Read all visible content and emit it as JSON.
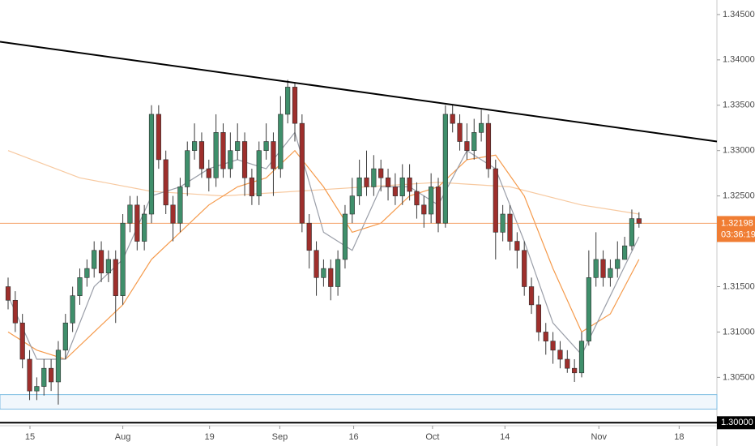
{
  "chart_data": {
    "type": "candlestick",
    "xlim": [
      -1.13,
      98.87
    ],
    "ylim": [
      1.29967,
      1.3466
    ],
    "xticks": [
      {
        "value": 3.05,
        "label": "15"
      },
      {
        "value": 16.0,
        "label": "Aug"
      },
      {
        "value": 28.1,
        "label": "19"
      },
      {
        "value": 37.9,
        "label": "Sep"
      },
      {
        "value": 48.2,
        "label": "16"
      },
      {
        "value": 59.2,
        "label": "Oct"
      },
      {
        "value": 69.3,
        "label": "14"
      },
      {
        "value": 82.4,
        "label": "Nov"
      },
      {
        "value": 93.6,
        "label": "18"
      }
    ],
    "yticks": [
      {
        "value": 1.345,
        "label": "1.34500"
      },
      {
        "value": 1.34,
        "label": "1.34000"
      },
      {
        "value": 1.335,
        "label": "1.33500"
      },
      {
        "value": 1.33,
        "label": "1.33000"
      },
      {
        "value": 1.325,
        "label": "1.32500"
      },
      {
        "value": 1.315,
        "label": "1.31500"
      },
      {
        "value": 1.31,
        "label": "1.31000"
      },
      {
        "value": 1.305,
        "label": "1.30500"
      }
    ],
    "up_color": "#3f8f6b",
    "down_color": "#9e2f2c",
    "x": [
      0,
      1,
      2,
      3,
      4,
      5,
      6,
      7,
      8,
      9,
      10,
      11,
      12,
      13,
      14,
      15,
      16,
      17,
      18,
      19,
      20,
      21,
      22,
      23,
      24,
      25,
      26,
      27,
      28,
      29,
      30,
      31,
      32,
      33,
      34,
      35,
      36,
      37,
      38,
      39,
      40,
      41,
      42,
      43,
      44,
      45,
      46,
      47,
      48,
      49,
      50,
      51,
      52,
      53,
      54,
      55,
      56,
      57,
      58,
      59,
      60,
      61,
      62,
      63,
      64,
      65,
      66,
      67,
      68,
      69,
      70,
      71,
      72,
      73,
      74,
      75,
      76,
      77,
      78,
      79,
      80,
      81,
      82,
      83,
      84,
      85,
      86,
      87,
      88
    ],
    "open": [
      1.315,
      1.3135,
      1.311,
      1.307,
      1.3035,
      1.304,
      1.306,
      1.3045,
      1.308,
      1.311,
      1.314,
      1.316,
      1.317,
      1.319,
      1.3165,
      1.318,
      1.314,
      1.322,
      1.324,
      1.32,
      1.323,
      1.334,
      1.329,
      1.324,
      1.322,
      1.326,
      1.33,
      1.331,
      1.328,
      1.327,
      1.332,
      1.328,
      1.33,
      1.331,
      1.327,
      1.325,
      1.33,
      1.331,
      1.328,
      1.334,
      1.337,
      1.333,
      1.322,
      1.319,
      1.316,
      1.317,
      1.315,
      1.318,
      1.323,
      1.325,
      1.327,
      1.326,
      1.328,
      1.327,
      1.326,
      1.325,
      1.327,
      1.3255,
      1.324,
      1.323,
      1.326,
      1.322,
      1.334,
      1.333,
      1.331,
      1.33,
      1.332,
      1.333,
      1.328,
      1.321,
      1.323,
      1.32,
      1.319,
      1.315,
      1.313,
      1.31,
      1.309,
      1.308,
      1.307,
      1.306,
      1.3055,
      1.309,
      1.316,
      1.318,
      1.316,
      1.317,
      1.318,
      1.3195,
      1.3225
    ],
    "high": [
      1.316,
      1.3145,
      1.312,
      1.308,
      1.305,
      1.307,
      1.307,
      1.309,
      1.312,
      1.315,
      1.317,
      1.318,
      1.32,
      1.32,
      1.319,
      1.319,
      1.323,
      1.325,
      1.325,
      1.324,
      1.335,
      1.335,
      1.33,
      1.325,
      1.327,
      1.331,
      1.333,
      1.332,
      1.329,
      1.334,
      1.333,
      1.332,
      1.333,
      1.332,
      1.328,
      1.331,
      1.333,
      1.332,
      1.336,
      1.3378,
      1.3375,
      1.334,
      1.323,
      1.32,
      1.318,
      1.318,
      1.319,
      1.324,
      1.327,
      1.329,
      1.33,
      1.3295,
      1.329,
      1.328,
      1.3275,
      1.3285,
      1.3285,
      1.3265,
      1.325,
      1.3275,
      1.327,
      1.335,
      1.335,
      1.334,
      1.333,
      1.3335,
      1.3345,
      1.334,
      1.329,
      1.324,
      1.324,
      1.321,
      1.32,
      1.316,
      1.314,
      1.311,
      1.31,
      1.309,
      1.308,
      1.307,
      1.31,
      1.319,
      1.321,
      1.319,
      1.318,
      1.32,
      1.3205,
      1.3235,
      1.3232
    ],
    "low": [
      1.3125,
      1.31,
      1.306,
      1.3025,
      1.3025,
      1.303,
      1.3035,
      1.302,
      1.307,
      1.31,
      1.313,
      1.315,
      1.316,
      1.3155,
      1.3155,
      1.311,
      1.313,
      1.321,
      1.319,
      1.319,
      1.322,
      1.328,
      1.323,
      1.32,
      1.321,
      1.325,
      1.329,
      1.327,
      1.3255,
      1.326,
      1.327,
      1.327,
      1.329,
      1.325,
      1.324,
      1.324,
      1.329,
      1.325,
      1.327,
      1.333,
      1.331,
      1.321,
      1.317,
      1.314,
      1.315,
      1.3135,
      1.314,
      1.317,
      1.322,
      1.324,
      1.325,
      1.325,
      1.3255,
      1.3245,
      1.324,
      1.324,
      1.3245,
      1.3225,
      1.3215,
      1.322,
      1.321,
      1.3215,
      1.332,
      1.33,
      1.329,
      1.329,
      1.331,
      1.327,
      1.318,
      1.32,
      1.319,
      1.317,
      1.314,
      1.312,
      1.309,
      1.3075,
      1.3065,
      1.306,
      1.3055,
      1.3045,
      1.305,
      1.3085,
      1.315,
      1.315,
      1.315,
      1.316,
      1.318,
      1.319,
      1.3215
    ],
    "close": [
      1.3135,
      1.311,
      1.307,
      1.3035,
      1.304,
      1.306,
      1.3045,
      1.308,
      1.311,
      1.314,
      1.316,
      1.317,
      1.319,
      1.3165,
      1.318,
      1.314,
      1.322,
      1.324,
      1.32,
      1.323,
      1.334,
      1.329,
      1.324,
      1.322,
      1.326,
      1.33,
      1.331,
      1.328,
      1.327,
      1.332,
      1.328,
      1.33,
      1.331,
      1.327,
      1.325,
      1.33,
      1.331,
      1.328,
      1.334,
      1.337,
      1.333,
      1.322,
      1.319,
      1.316,
      1.317,
      1.315,
      1.318,
      1.323,
      1.325,
      1.327,
      1.326,
      1.328,
      1.327,
      1.326,
      1.325,
      1.327,
      1.3255,
      1.324,
      1.323,
      1.326,
      1.322,
      1.334,
      1.333,
      1.331,
      1.33,
      1.332,
      1.333,
      1.328,
      1.321,
      1.323,
      1.32,
      1.319,
      1.315,
      1.313,
      1.31,
      1.309,
      1.308,
      1.307,
      1.306,
      1.3055,
      1.309,
      1.316,
      1.318,
      1.316,
      1.317,
      1.318,
      1.3195,
      1.3225,
      1.32198
    ],
    "lines": [
      {
        "color": "#f7c9a0",
        "x": [
          0,
          10,
          20,
          30,
          40,
          50,
          60,
          70,
          80,
          88
        ],
        "values": [
          1.33,
          1.327,
          1.3255,
          1.325,
          1.3255,
          1.326,
          1.3265,
          1.326,
          1.324,
          1.323
        ]
      },
      {
        "color": "#f59a4b",
        "x": [
          0,
          4,
          8,
          12,
          16,
          20,
          24,
          28,
          32,
          36,
          40,
          44,
          48,
          52,
          56,
          60,
          64,
          68,
          72,
          76,
          80,
          84,
          88
        ],
        "values": [
          1.31,
          1.308,
          1.307,
          1.31,
          1.313,
          1.318,
          1.321,
          1.324,
          1.326,
          1.327,
          1.33,
          1.326,
          1.321,
          1.322,
          1.325,
          1.326,
          1.329,
          1.3295,
          1.325,
          1.317,
          1.31,
          1.312,
          1.318
        ]
      },
      {
        "color": "#9a9ea8",
        "x": [
          0,
          4,
          8,
          12,
          16,
          20,
          24,
          28,
          32,
          36,
          40,
          44,
          48,
          52,
          56,
          60,
          64,
          68,
          72,
          76,
          80,
          84,
          88
        ],
        "values": [
          1.314,
          1.307,
          1.307,
          1.315,
          1.318,
          1.325,
          1.326,
          1.328,
          1.329,
          1.328,
          1.332,
          1.321,
          1.319,
          1.326,
          1.326,
          1.324,
          1.33,
          1.328,
          1.32,
          1.311,
          1.3075,
          1.314,
          1.3205
        ]
      }
    ],
    "trendline": {
      "x": [
        -1.13,
        98.87
      ],
      "values": [
        1.342,
        1.331
      ]
    },
    "zone": [
      1.3015,
      1.3031
    ],
    "hline": {
      "value": 1.3,
      "label": "1.30000"
    },
    "last_price": {
      "value": 1.32198,
      "label": "1.32198"
    },
    "countdown": "03:36:19"
  }
}
